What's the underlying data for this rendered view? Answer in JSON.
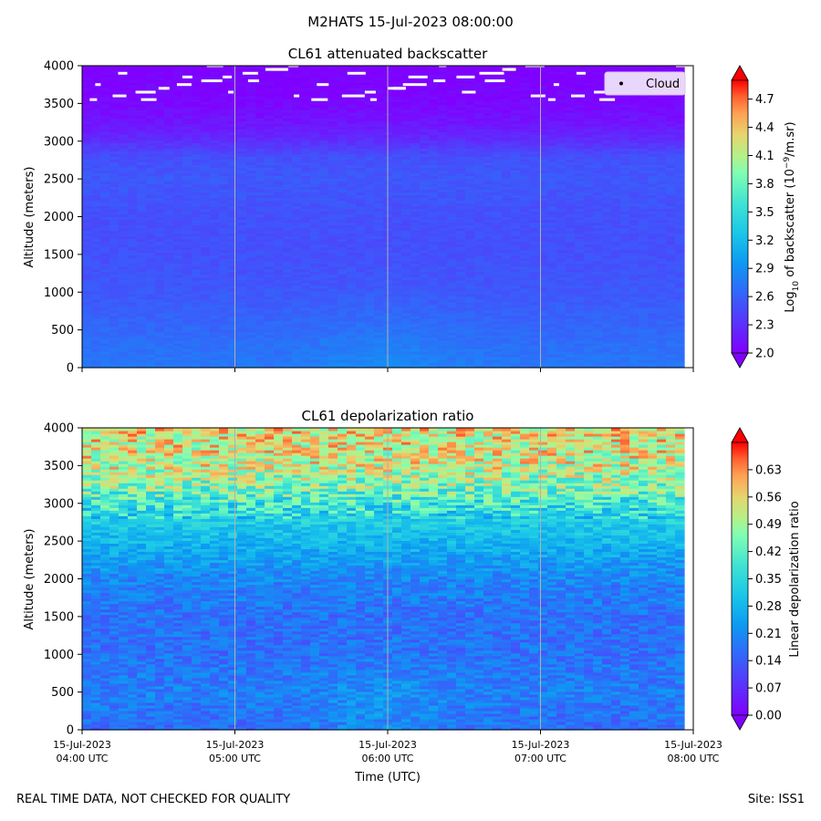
{
  "figure": {
    "suptitle": "M2HATS 15-Jul-2023 08:00:00",
    "footer_left": "REAL TIME DATA, NOT CHECKED FOR QUALITY",
    "footer_right": "Site: ISS1",
    "xlabel": "Time (UTC)"
  },
  "chart_data": [
    {
      "type": "heatmap",
      "title": "CL61 attenuated backscatter",
      "ylabel": "Altitude (meters)",
      "ylim": [
        0,
        4000
      ],
      "yticks": [
        0,
        500,
        1000,
        1500,
        2000,
        2500,
        3000,
        3500,
        4000
      ],
      "xlim": [
        "2023-07-15 04:00",
        "2023-07-15 08:00"
      ],
      "grid": "vertical",
      "colorbar": {
        "label_main": "Log",
        "label_sub": "10",
        "label_mid": " of backscatter (10",
        "label_sup": "−9",
        "label_end": "/m.sr)",
        "range": [
          2.0,
          4.9
        ],
        "ticks": [
          "2.0",
          "2.3",
          "2.6",
          "2.9",
          "3.2",
          "3.5",
          "3.8",
          "4.1",
          "4.4",
          "4.7"
        ],
        "extend": "both",
        "colormap": "rainbow"
      },
      "legend": {
        "entries": [
          "Cloud"
        ],
        "placement": "top-right"
      },
      "profile": {
        "altitudes": [
          0,
          500,
          1000,
          1500,
          2000,
          2500,
          2800,
          3000,
          3200,
          3500,
          4000
        ],
        "values": [
          2.75,
          2.65,
          2.55,
          2.5,
          2.5,
          2.55,
          2.5,
          2.3,
          2.15,
          2.05,
          2.0
        ]
      },
      "cloud_altitudes_m": [
        3550,
        3600,
        3650,
        3700,
        3750,
        3800,
        3850,
        3900,
        3950,
        4000
      ],
      "cloud_times_h": [
        4.05,
        4.2,
        4.35,
        4.5,
        4.62,
        4.78,
        4.92,
        5.05,
        5.2,
        5.35,
        5.5,
        5.7,
        5.85,
        6.0,
        6.1,
        6.3,
        6.45,
        6.6,
        6.75,
        6.9,
        7.05,
        7.2,
        7.35,
        7.55,
        7.7,
        7.85
      ]
    },
    {
      "type": "heatmap",
      "title": "CL61 depolarization ratio",
      "ylabel": "Altitude (meters)",
      "ylim": [
        0,
        4000
      ],
      "yticks": [
        0,
        500,
        1000,
        1500,
        2000,
        2500,
        3000,
        3500,
        4000
      ],
      "xlim": [
        "2023-07-15 04:00",
        "2023-07-15 08:00"
      ],
      "grid": "vertical",
      "colorbar": {
        "label": "Linear depolarization ratio",
        "range": [
          0.0,
          0.7
        ],
        "ticks": [
          "0.00",
          "0.07",
          "0.14",
          "0.21",
          "0.28",
          "0.35",
          "0.42",
          "0.49",
          "0.56",
          "0.63"
        ],
        "extend": "both",
        "colormap": "rainbow"
      },
      "profile": {
        "altitudes": [
          0,
          500,
          1000,
          1500,
          2000,
          2500,
          2800,
          3000,
          3200,
          3500,
          4000
        ],
        "values": [
          0.16,
          0.19,
          0.17,
          0.17,
          0.2,
          0.28,
          0.33,
          0.38,
          0.45,
          0.52,
          0.55
        ]
      }
    }
  ],
  "x_ticks": [
    {
      "date": "15-Jul-2023",
      "time": "04:00 UTC"
    },
    {
      "date": "15-Jul-2023",
      "time": "05:00 UTC"
    },
    {
      "date": "15-Jul-2023",
      "time": "06:00 UTC"
    },
    {
      "date": "15-Jul-2023",
      "time": "07:00 UTC"
    },
    {
      "date": "15-Jul-2023",
      "time": "08:00 UTC"
    }
  ]
}
